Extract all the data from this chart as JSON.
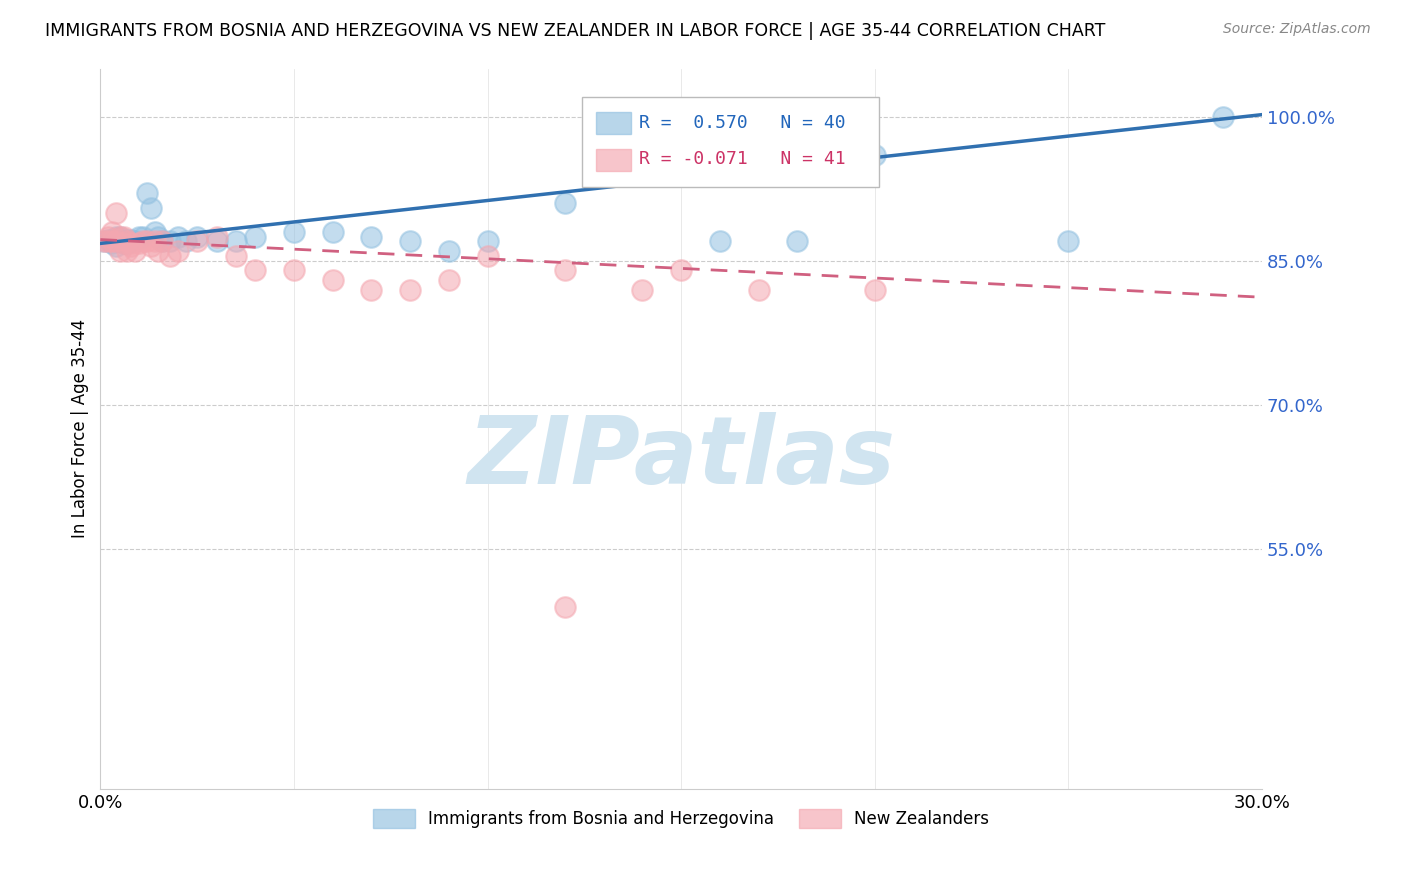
{
  "title": "IMMIGRANTS FROM BOSNIA AND HERZEGOVINA VS NEW ZEALANDER IN LABOR FORCE | AGE 35-44 CORRELATION CHART",
  "source": "Source: ZipAtlas.com",
  "ylabel": "In Labor Force | Age 35-44",
  "xlim": [
    0.0,
    0.3
  ],
  "ylim": [
    0.3,
    1.05
  ],
  "yticks": [
    0.55,
    0.7,
    0.85,
    1.0
  ],
  "ytick_labels": [
    "55.0%",
    "70.0%",
    "85.0%",
    "100.0%"
  ],
  "xticks": [
    0.0,
    0.05,
    0.1,
    0.15,
    0.2,
    0.25,
    0.3
  ],
  "xtick_labels": [
    "0.0%",
    "",
    "",
    "",
    "",
    "",
    "30.0%"
  ],
  "blue_color": "#92c0e0",
  "pink_color": "#f4a7b0",
  "trend_blue": "#3070b0",
  "trend_pink": "#d06080",
  "watermark": "ZIPatlas",
  "watermark_color": "#d0e4f0",
  "blue_scatter_x": [
    0.001,
    0.002,
    0.003,
    0.004,
    0.004,
    0.005,
    0.005,
    0.006,
    0.006,
    0.007,
    0.007,
    0.008,
    0.009,
    0.01,
    0.011,
    0.012,
    0.013,
    0.014,
    0.015,
    0.016,
    0.018,
    0.02,
    0.022,
    0.025,
    0.03,
    0.035,
    0.04,
    0.05,
    0.06,
    0.07,
    0.08,
    0.09,
    0.1,
    0.12,
    0.15,
    0.16,
    0.18,
    0.2,
    0.25,
    0.29
  ],
  "blue_scatter_y": [
    0.87,
    0.872,
    0.868,
    0.875,
    0.865,
    0.87,
    0.875,
    0.87,
    0.868,
    0.872,
    0.868,
    0.872,
    0.87,
    0.875,
    0.875,
    0.92,
    0.905,
    0.88,
    0.875,
    0.87,
    0.87,
    0.875,
    0.87,
    0.875,
    0.87,
    0.87,
    0.875,
    0.88,
    0.88,
    0.875,
    0.87,
    0.86,
    0.87,
    0.91,
    0.96,
    0.87,
    0.87,
    0.96,
    0.87,
    1.0
  ],
  "pink_scatter_x": [
    0.001,
    0.002,
    0.002,
    0.003,
    0.003,
    0.004,
    0.004,
    0.005,
    0.005,
    0.006,
    0.006,
    0.007,
    0.007,
    0.008,
    0.008,
    0.009,
    0.01,
    0.011,
    0.012,
    0.013,
    0.014,
    0.015,
    0.016,
    0.018,
    0.02,
    0.025,
    0.03,
    0.035,
    0.04,
    0.05,
    0.06,
    0.07,
    0.08,
    0.09,
    0.1,
    0.12,
    0.14,
    0.15,
    0.17,
    0.2,
    0.12
  ],
  "pink_scatter_y": [
    0.87,
    0.875,
    0.87,
    0.88,
    0.87,
    0.9,
    0.87,
    0.875,
    0.86,
    0.868,
    0.875,
    0.87,
    0.86,
    0.865,
    0.868,
    0.86,
    0.868,
    0.87,
    0.87,
    0.865,
    0.87,
    0.86,
    0.87,
    0.855,
    0.86,
    0.87,
    0.875,
    0.855,
    0.84,
    0.84,
    0.83,
    0.82,
    0.82,
    0.83,
    0.855,
    0.84,
    0.82,
    0.84,
    0.82,
    0.82,
    0.49
  ]
}
